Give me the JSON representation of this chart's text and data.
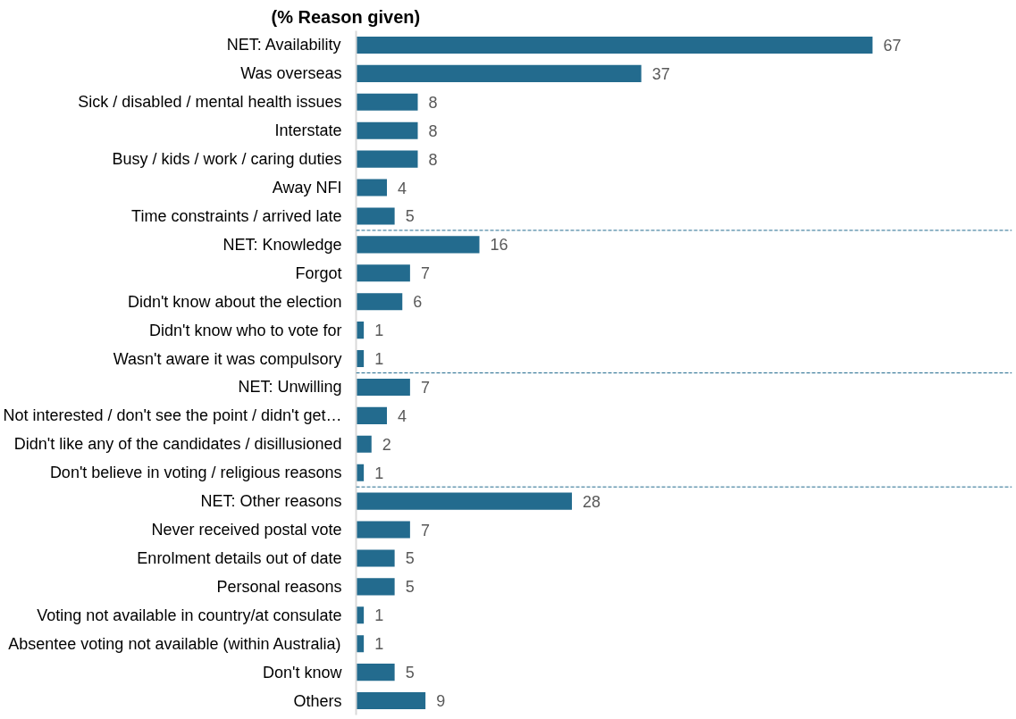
{
  "chart_data": {
    "type": "bar",
    "orientation": "horizontal",
    "title": "(% Reason given)",
    "categories": [
      "NET: Availability",
      "Was overseas",
      "Sick / disabled / mental health issues",
      "Interstate",
      "Busy / kids / work / caring duties",
      "Away NFI",
      "Time constraints / arrived late",
      "NET: Knowledge",
      "Forgot",
      "Didn't know about the election",
      "Didn't know who to vote for",
      "Wasn't aware it was compulsory",
      "NET: Unwilling",
      "Not interested / don't see the point / didn't get…",
      "Didn't like any of the candidates / disillusioned",
      "Don't believe in voting / religious reasons",
      "NET: Other reasons",
      "Never received postal vote",
      "Enrolment details out of date",
      "Personal reasons",
      "Voting not available in country/at consulate",
      "Absentee voting not available (within Australia)",
      "Don't know",
      "Others"
    ],
    "values": [
      67,
      37,
      8,
      8,
      8,
      4,
      5,
      16,
      7,
      6,
      1,
      1,
      7,
      4,
      2,
      1,
      28,
      7,
      5,
      5,
      1,
      1,
      5,
      9
    ],
    "color": "#236b8e",
    "data_labels": true
  }
}
